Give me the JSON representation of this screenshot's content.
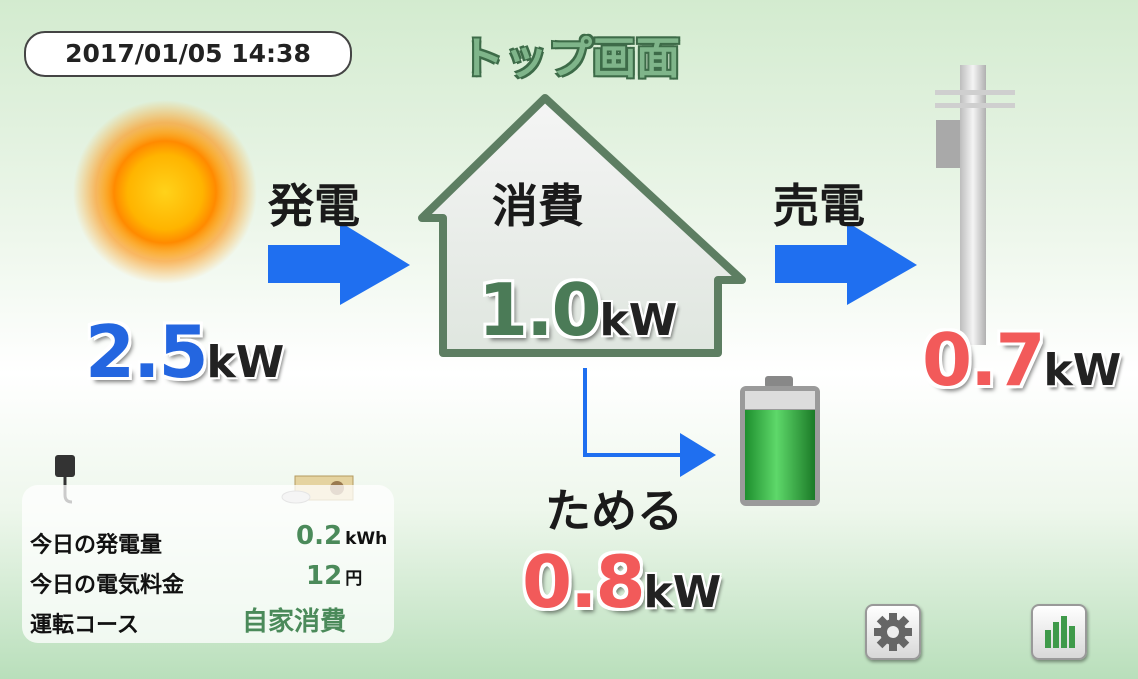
{
  "header": {
    "datetime": "2017/01/05 14:38",
    "title": "トップ画面"
  },
  "flows": {
    "generation": {
      "label": "発電",
      "value": "2.5",
      "unit": "kW"
    },
    "consumption": {
      "label": "消費",
      "value": "1.0",
      "unit": "kW"
    },
    "sale": {
      "label": "売電",
      "value": "0.7",
      "unit": "kW"
    },
    "storage": {
      "label": "ためる",
      "value": "0.8",
      "unit": "kW"
    }
  },
  "summary": {
    "rows": [
      {
        "label": "今日の発電量",
        "value": "0.2",
        "unit": "kWh"
      },
      {
        "label": "今日の電気料金",
        "value": "12",
        "unit": "円"
      },
      {
        "label": "運転コース",
        "value": "自家消費"
      }
    ]
  }
}
